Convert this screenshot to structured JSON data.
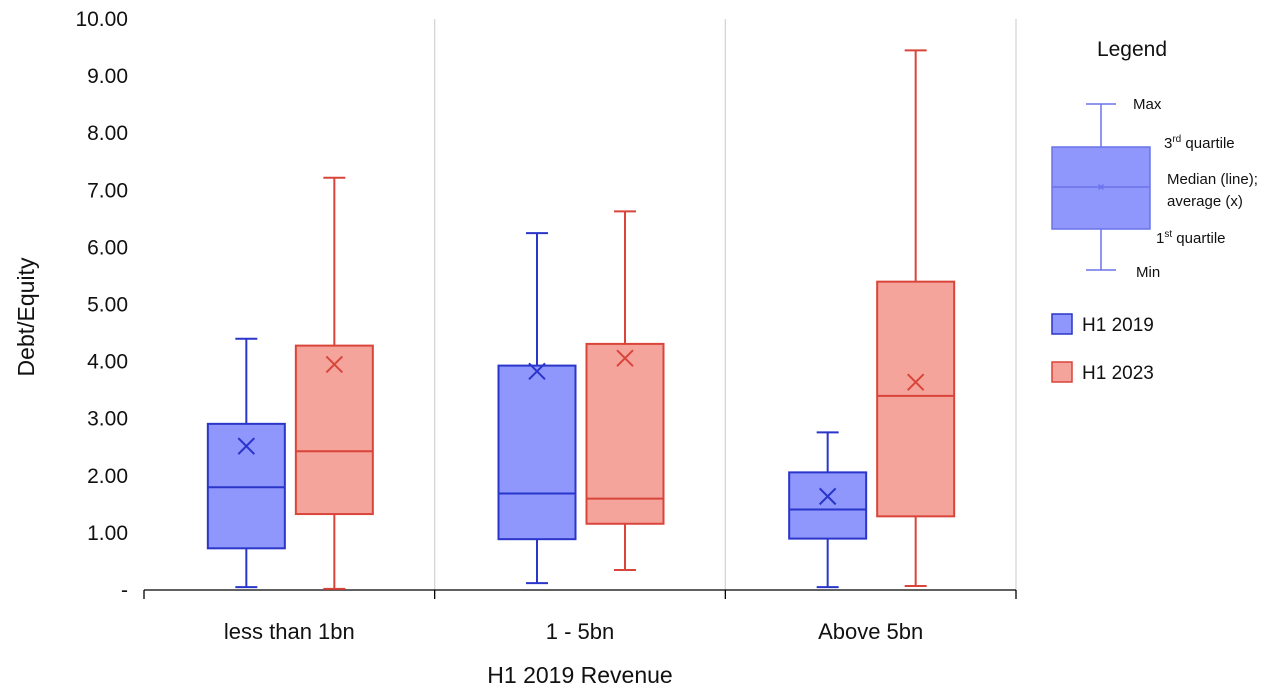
{
  "chart_data": {
    "type": "box",
    "title": "",
    "xlabel": "H1 2019 Revenue",
    "ylabel": "Debt/Equity",
    "ylim": [
      0,
      10
    ],
    "yticks": [
      "-",
      "1.00",
      "2.00",
      "3.00",
      "4.00",
      "5.00",
      "6.00",
      "7.00",
      "8.00",
      "9.00",
      "10.00"
    ],
    "categories": [
      "less than 1bn",
      "1 - 5bn",
      "Above 5bn"
    ],
    "grid": "vertical category separators",
    "series": [
      {
        "name": "H1 2019",
        "color": "#2a35c9",
        "fill": "#8f97fc",
        "boxes": [
          {
            "min": 0.05,
            "q1": 0.73,
            "median": 1.8,
            "q3": 2.91,
            "max": 4.4,
            "mean": 2.52
          },
          {
            "min": 0.12,
            "q1": 0.89,
            "median": 1.69,
            "q3": 3.93,
            "max": 6.25,
            "mean": 3.83
          },
          {
            "min": 0.05,
            "q1": 0.9,
            "median": 1.41,
            "q3": 2.06,
            "max": 2.76,
            "mean": 1.64
          }
        ]
      },
      {
        "name": "H1 2023",
        "color": "#d9453a",
        "fill": "#f5a49c",
        "boxes": [
          {
            "min": 0.02,
            "q1": 1.33,
            "median": 2.43,
            "q3": 4.28,
            "max": 7.22,
            "mean": 3.95
          },
          {
            "min": 0.35,
            "q1": 1.16,
            "median": 1.6,
            "q3": 4.31,
            "max": 6.63,
            "mean": 4.06
          },
          {
            "min": 0.07,
            "q1": 1.29,
            "median": 3.4,
            "q3": 5.4,
            "max": 9.45,
            "mean": 3.64
          }
        ]
      }
    ],
    "legend": {
      "title": "Legend",
      "position": "right",
      "key_labels": {
        "max": "Max",
        "q3_base": "3",
        "q3_sup": "rd",
        "q3_rest": " quartile",
        "median_line1": "Median (line);",
        "median_line2": "average (x)",
        "q1_base": "1",
        "q1_sup": "st",
        "q1_rest": " quartile",
        "min": "Min"
      },
      "key_colors": {
        "stroke": "#6b73e8",
        "fill": "#8f97fc"
      }
    }
  }
}
